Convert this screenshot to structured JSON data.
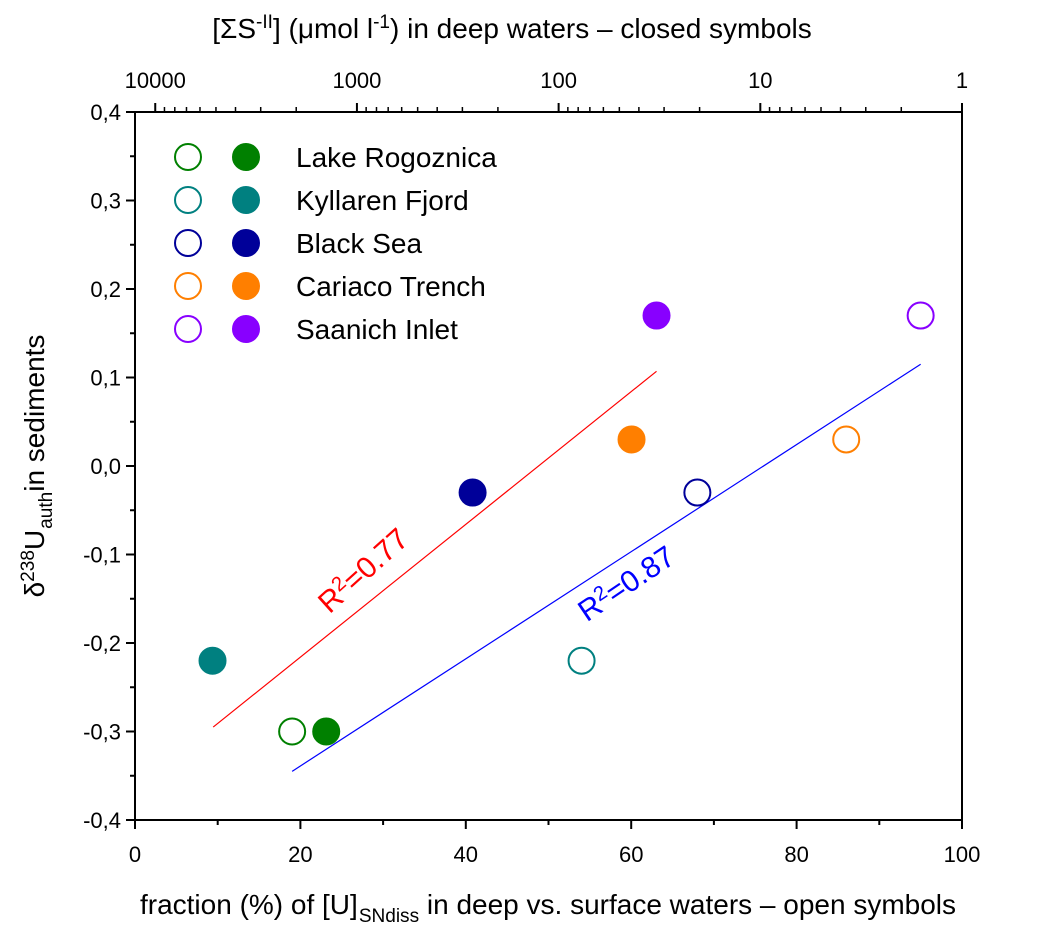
{
  "chart_data": {
    "type": "scatter",
    "xlabel": [
      {
        "text": "fraction (%) of [U]"
      },
      {
        "text": "SNdiss",
        "script": "sub"
      },
      {
        "text": " in deep vs. surface waters – open symbols"
      }
    ],
    "x2label": [
      {
        "text": "[ΣS"
      },
      {
        "text": "-II",
        "script": "sup"
      },
      {
        "text": "] (μmol l"
      },
      {
        "text": "-1",
        "script": "sup"
      },
      {
        "text": ") in deep waters – closed symbols"
      }
    ],
    "ylabel": [
      {
        "text": "δ"
      },
      {
        "text": "238",
        "script": "sup"
      },
      {
        "text": "U"
      },
      {
        "text": "auth",
        "script": "sub"
      },
      {
        "text": "in sediments"
      }
    ],
    "xlim": [
      0,
      100
    ],
    "xticks": [
      0,
      20,
      40,
      60,
      80,
      100
    ],
    "xminorticks": [
      10,
      30,
      50,
      70,
      90
    ],
    "x2lim": [
      12600,
      1
    ],
    "x2scale": "log",
    "x2ticks": [
      10000,
      1000,
      100,
      10,
      1
    ],
    "x2minorticks": [
      9000,
      8000,
      7000,
      6000,
      5000,
      4000,
      3000,
      2000,
      900,
      800,
      700,
      600,
      500,
      400,
      300,
      200,
      90,
      80,
      70,
      60,
      50,
      40,
      30,
      20,
      9,
      8,
      7,
      6,
      5,
      4,
      3,
      2
    ],
    "ylim": [
      -0.4,
      0.4
    ],
    "yticks": [
      {
        "value": -0.4,
        "label": "-0,4"
      },
      {
        "value": -0.3,
        "label": "-0,3"
      },
      {
        "value": -0.2,
        "label": "-0,2"
      },
      {
        "value": -0.1,
        "label": "-0,1"
      },
      {
        "value": 0,
        "label": "0,0"
      },
      {
        "value": 0.1,
        "label": "0,1"
      },
      {
        "value": 0.2,
        "label": "0,2"
      },
      {
        "value": 0.3,
        "label": "0,3"
      },
      {
        "value": 0.4,
        "label": "0,4"
      }
    ],
    "yminorticks": [
      -0.35,
      -0.25,
      -0.15,
      -0.05,
      0.05,
      0.15,
      0.25,
      0.35
    ],
    "series": [
      {
        "name": "Lake Rogoznica",
        "color": "#008000",
        "open": {
          "x": [
            19
          ],
          "values": [
            -0.3
          ]
        },
        "closed": {
          "x": [
            1420
          ],
          "values": [
            -0.3
          ]
        }
      },
      {
        "name": "Kyllaren Fjord",
        "color": "#008080",
        "open": {
          "x": [
            54
          ],
          "values": [
            -0.22
          ]
        },
        "closed": {
          "x": [
            5200
          ],
          "values": [
            -0.22
          ]
        }
      },
      {
        "name": "Black Sea",
        "color": "#000099",
        "open": {
          "x": [
            68
          ],
          "values": [
            -0.03
          ]
        },
        "closed": {
          "x": [
            267
          ],
          "values": [
            -0.03
          ]
        }
      },
      {
        "name": "Cariaco Trench",
        "color": "#ff7f00",
        "open": {
          "x": [
            86
          ],
          "values": [
            0.03
          ]
        },
        "closed": {
          "x": [
            43.5
          ],
          "values": [
            0.03
          ]
        }
      },
      {
        "name": "Saanich Inlet",
        "color": "#8800ff",
        "open": {
          "x": [
            95
          ],
          "values": [
            0.17
          ]
        },
        "closed": {
          "x": [
            32.7
          ],
          "values": [
            0.17
          ]
        }
      }
    ],
    "fits": [
      {
        "color": "#ff0000",
        "axis": "x2",
        "x": [
          5160,
          32.7
        ],
        "values": [
          -0.295,
          0.107
        ],
        "label": [
          {
            "text": "R"
          },
          {
            "text": "2",
            "script": "sup"
          },
          {
            "text": "=0.77"
          }
        ]
      },
      {
        "color": "#0000ff",
        "axis": "x",
        "x": [
          19,
          95
        ],
        "values": [
          -0.345,
          0.115
        ],
        "label": [
          {
            "text": "R"
          },
          {
            "text": "2",
            "script": "sup"
          },
          {
            "text": "=0.87"
          }
        ]
      }
    ]
  }
}
